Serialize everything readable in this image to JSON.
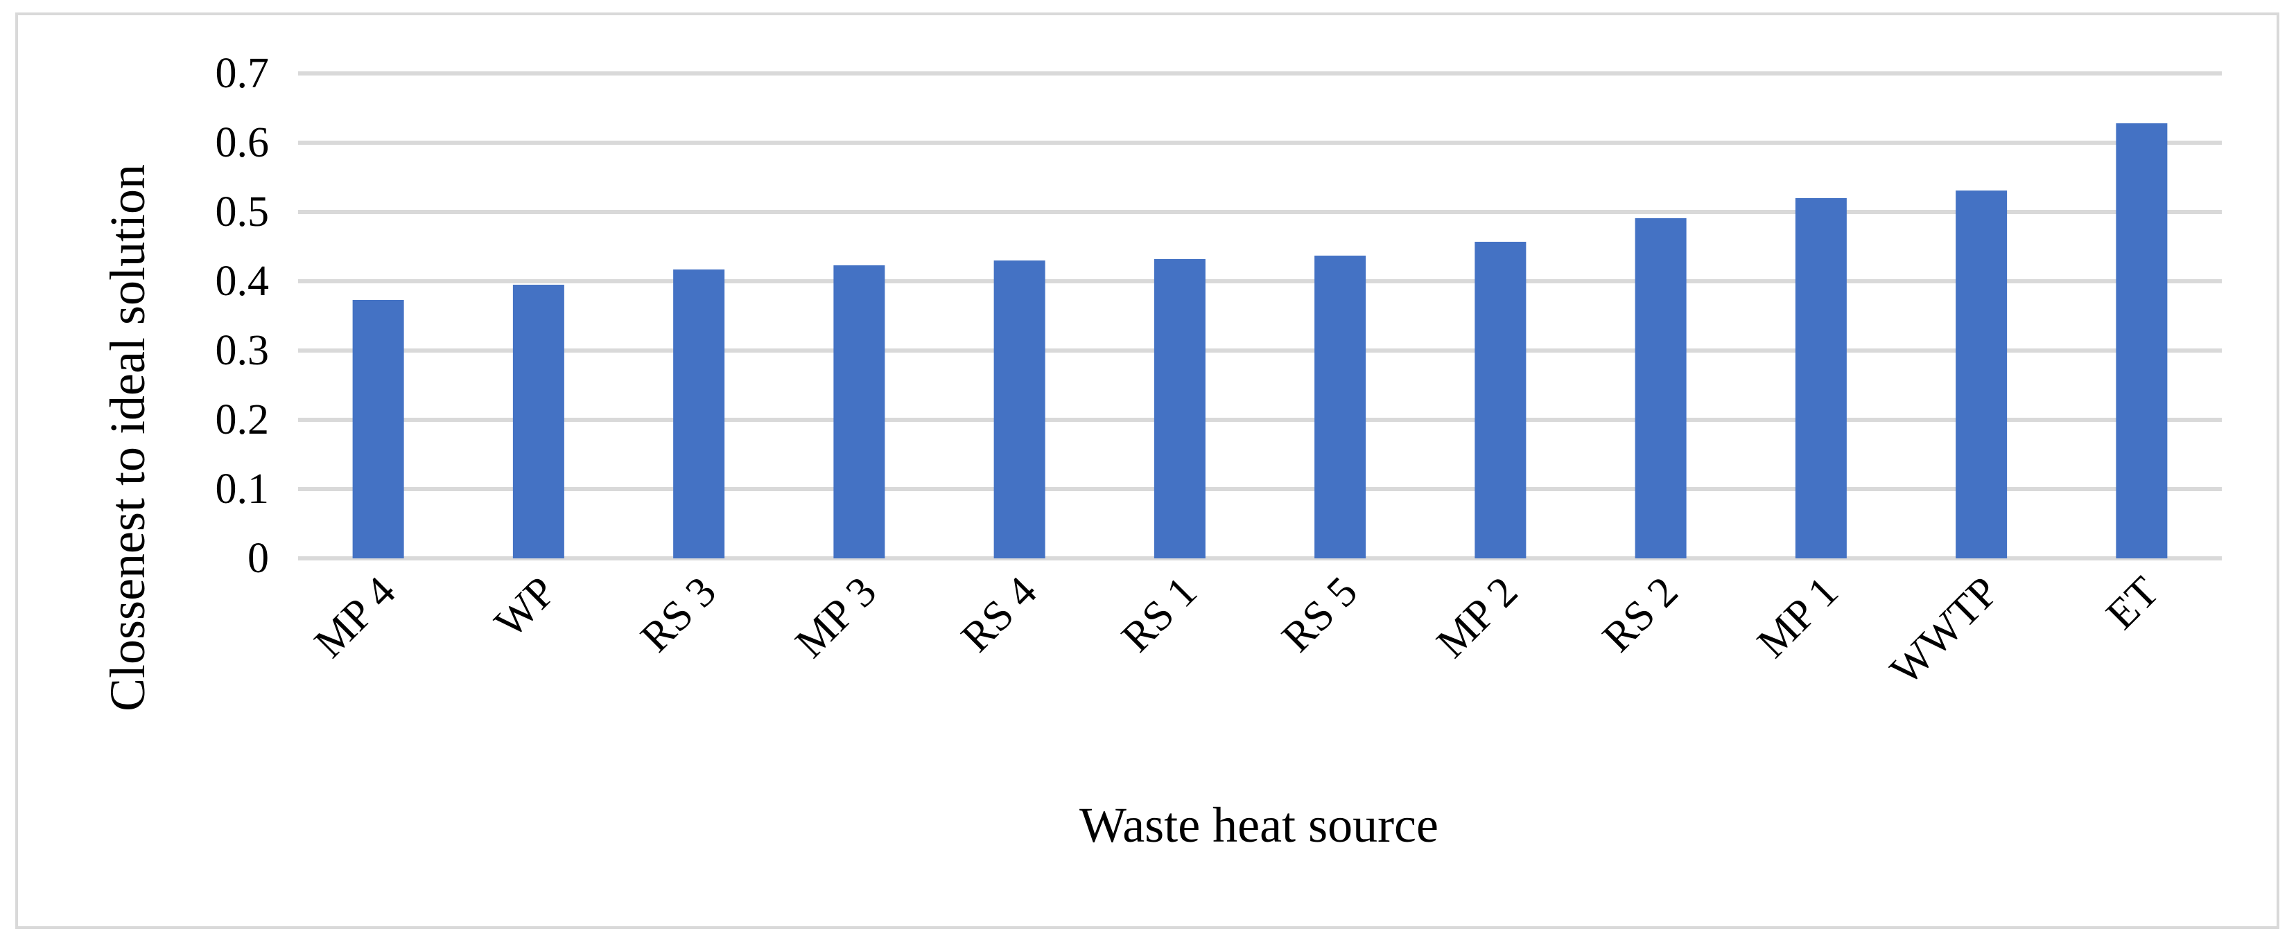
{
  "chart_data": {
    "type": "bar",
    "categories": [
      "MP 4",
      "WP",
      "RS 3",
      "MP 3",
      "RS 4",
      "RS 1",
      "RS 5",
      "MP 2",
      "RS 2",
      "MP 1",
      "WWTP",
      "ET"
    ],
    "values": [
      0.373,
      0.395,
      0.417,
      0.423,
      0.43,
      0.432,
      0.437,
      0.457,
      0.491,
      0.52,
      0.531,
      0.628
    ],
    "xlabel": "Waste heat source",
    "ylabel": "Clossenest to ideal solution",
    "ylim": [
      0,
      0.7
    ],
    "yticks": [
      "0",
      "0.1",
      "0.2",
      "0.3",
      "0.4",
      "0.5",
      "0.6",
      "0.7"
    ],
    "grid": true,
    "legend": "none",
    "bar_color": "#4472c4",
    "grid_color": "#d9d9d9"
  }
}
